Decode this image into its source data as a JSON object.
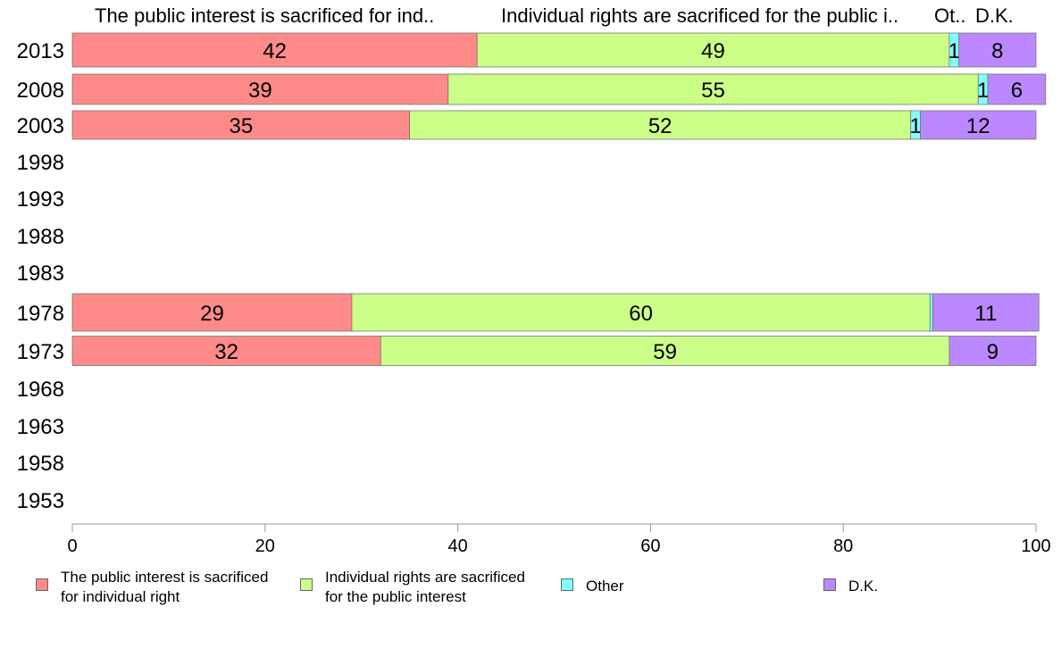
{
  "chart_data": {
    "type": "bar",
    "orientation": "horizontal",
    "stacked": true,
    "categories": [
      "2013",
      "2008",
      "2003",
      "1998",
      "1993",
      "1988",
      "1983",
      "1978",
      "1973",
      "1968",
      "1963",
      "1958",
      "1953"
    ],
    "column_headers": [
      "The public interest is sacrificed for ind..",
      "Individual rights are sacrificed for the public i..",
      "Ot..",
      "D.K."
    ],
    "series": [
      {
        "name": "The public interest is sacrificed\nfor individual right",
        "color": "#ff8a8a",
        "values": [
          42,
          39,
          35,
          null,
          null,
          null,
          null,
          29,
          32,
          null,
          null,
          null,
          null
        ]
      },
      {
        "name": "Individual rights are sacrificed\nfor the public interest",
        "color": "#ccff88",
        "values": [
          49,
          55,
          52,
          null,
          null,
          null,
          null,
          60,
          59,
          null,
          null,
          null,
          null
        ]
      },
      {
        "name": "Other",
        "color": "#80ffff",
        "values": [
          1,
          1,
          1,
          null,
          null,
          null,
          null,
          0.3,
          0,
          null,
          null,
          null,
          null
        ]
      },
      {
        "name": "D.K.",
        "color": "#bb88ff",
        "values": [
          8,
          6,
          12,
          null,
          null,
          null,
          null,
          11,
          9,
          null,
          null,
          null,
          null
        ]
      }
    ],
    "data_labels": [
      [
        "42",
        "49",
        "1",
        "8"
      ],
      [
        "39",
        "55",
        "1",
        "6"
      ],
      [
        "35",
        "52",
        "1",
        "12"
      ],
      null,
      null,
      null,
      null,
      [
        "29",
        "60",
        "",
        "11"
      ],
      [
        "32",
        "59",
        "",
        "9"
      ],
      null,
      null,
      null,
      null
    ],
    "xlim": [
      0,
      100
    ],
    "xticks": [
      "0",
      "20",
      "40",
      "60",
      "80",
      "100"
    ],
    "grid": false,
    "legend_position": "bottom"
  }
}
